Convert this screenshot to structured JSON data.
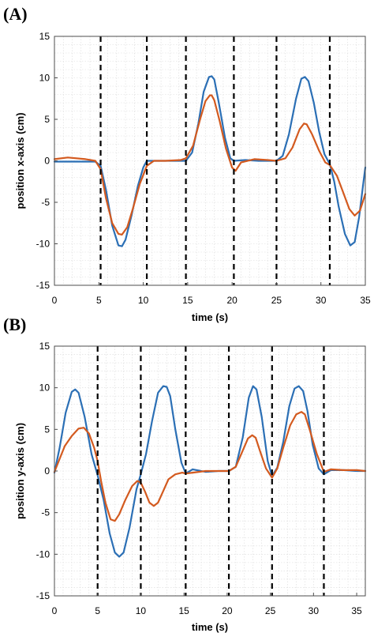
{
  "colors": {
    "blue": "#2b6fb5",
    "orange": "#d35a1f",
    "grid": "#d9d9d9"
  },
  "chart_data": [
    {
      "type": "line",
      "panel_label": "(A)",
      "xlabel": "time (s)",
      "ylabel": "position x-axis (cm)",
      "xlim": [
        0,
        35
      ],
      "ylim": [
        -15,
        15
      ],
      "xticks": [
        0,
        5,
        10,
        15,
        20,
        25,
        30,
        35
      ],
      "yticks": [
        -15,
        -10,
        -5,
        0,
        5,
        10,
        15
      ],
      "grid": true,
      "event_lines": [
        5.2,
        10.4,
        14.8,
        20.2,
        25.0,
        31.0
      ],
      "series": [
        {
          "color": "blue",
          "x": [
            0,
            4.6,
            5.2,
            5.8,
            6.5,
            7.2,
            7.6,
            8.0,
            8.7,
            9.4,
            10.0,
            10.4,
            11.0,
            12.5,
            14.2,
            14.8,
            15.5,
            16.2,
            16.8,
            17.4,
            17.7,
            18.0,
            18.5,
            19.2,
            19.8,
            20.2,
            21.5,
            23.0,
            25.0,
            25.7,
            26.4,
            27.2,
            27.8,
            28.2,
            28.6,
            29.2,
            29.8,
            30.4,
            31.0,
            31.5,
            32.0,
            32.7,
            33.3,
            33.8,
            34.3,
            34.8,
            35.0
          ],
          "y": [
            -0.1,
            -0.1,
            -0.6,
            -3.5,
            -7.8,
            -10.2,
            -10.3,
            -9.5,
            -6.5,
            -3.0,
            -0.8,
            0.0,
            0.0,
            0.0,
            0.0,
            0.0,
            1.0,
            4.5,
            8.3,
            10.1,
            10.2,
            9.8,
            7.0,
            2.8,
            0.3,
            0.0,
            0.1,
            0.0,
            0.0,
            0.6,
            3.2,
            7.5,
            9.9,
            10.1,
            9.6,
            7.0,
            3.5,
            0.8,
            -0.4,
            -2.5,
            -5.5,
            -8.8,
            -10.2,
            -9.8,
            -6.8,
            -2.5,
            -0.8
          ]
        },
        {
          "color": "orange",
          "x": [
            0,
            1.5,
            3.5,
            4.6,
            5.2,
            5.8,
            6.5,
            7.2,
            7.6,
            8.2,
            8.9,
            9.6,
            10.4,
            11.2,
            12.5,
            14.2,
            14.8,
            15.6,
            16.4,
            17.0,
            17.5,
            17.7,
            18.0,
            18.6,
            19.3,
            20.0,
            20.4,
            21.0,
            22.5,
            24.0,
            25.0,
            26.0,
            26.8,
            27.6,
            28.1,
            28.4,
            29.0,
            29.8,
            30.5,
            31.0,
            31.8,
            32.5,
            33.2,
            33.8,
            34.4,
            35.0
          ],
          "y": [
            0.2,
            0.4,
            0.2,
            0.0,
            -1.0,
            -4.5,
            -7.5,
            -8.8,
            -8.9,
            -8.0,
            -5.5,
            -2.8,
            -0.6,
            0.0,
            0.0,
            0.1,
            0.3,
            1.8,
            5.0,
            7.2,
            7.9,
            7.9,
            7.3,
            4.8,
            1.5,
            -0.8,
            -1.2,
            -0.2,
            0.2,
            0.1,
            0.0,
            0.3,
            1.6,
            3.8,
            4.5,
            4.4,
            3.2,
            1.2,
            -0.2,
            -0.5,
            -1.8,
            -3.8,
            -5.8,
            -6.6,
            -6.0,
            -4.0
          ]
        }
      ]
    },
    {
      "type": "line",
      "panel_label": "(B)",
      "xlabel": "time (s)",
      "ylabel": "position y-axis (cm)",
      "xlim": [
        0,
        36
      ],
      "ylim": [
        -15,
        15
      ],
      "xticks": [
        0,
        5,
        10,
        15,
        20,
        25,
        30,
        35
      ],
      "yticks": [
        -15,
        -10,
        -5,
        0,
        5,
        10,
        15
      ],
      "grid": true,
      "event_lines": [
        5.0,
        10.0,
        15.2,
        20.2,
        25.2,
        31.2
      ],
      "series": [
        {
          "color": "blue",
          "x": [
            0,
            0.6,
            1.3,
            2.0,
            2.4,
            2.8,
            3.5,
            4.3,
            5.0,
            5.7,
            6.4,
            7.0,
            7.5,
            8.0,
            8.7,
            9.5,
            10.0,
            10.6,
            11.3,
            12.0,
            12.6,
            13.0,
            13.4,
            14.0,
            14.7,
            15.2,
            16.0,
            17.5,
            19.0,
            20.2,
            21.0,
            21.8,
            22.5,
            23.0,
            23.4,
            24.0,
            24.7,
            25.2,
            25.8,
            26.5,
            27.2,
            27.8,
            28.3,
            28.8,
            29.3,
            29.9,
            30.6,
            31.2,
            32.0,
            33.5,
            35.0,
            36.0
          ],
          "y": [
            -0.2,
            2.8,
            7.0,
            9.5,
            9.8,
            9.4,
            6.5,
            2.0,
            -0.5,
            -3.5,
            -7.5,
            -9.8,
            -10.3,
            -9.8,
            -6.8,
            -2.2,
            -0.4,
            2.0,
            6.0,
            9.4,
            10.2,
            10.1,
            9.0,
            5.0,
            1.0,
            -0.3,
            0.2,
            -0.1,
            0.0,
            0.0,
            0.5,
            4.0,
            8.8,
            10.2,
            9.8,
            6.5,
            1.2,
            -0.6,
            0.4,
            3.5,
            7.8,
            9.9,
            10.2,
            9.6,
            7.2,
            3.2,
            0.3,
            -0.4,
            0.1,
            0.1,
            0.0,
            0.0
          ]
        },
        {
          "color": "orange",
          "x": [
            0,
            0.5,
            1.2,
            2.0,
            2.8,
            3.4,
            4.0,
            4.6,
            5.0,
            5.4,
            5.9,
            6.5,
            7.0,
            7.5,
            8.2,
            9.0,
            9.6,
            10.0,
            10.5,
            11.0,
            11.5,
            12.0,
            12.6,
            13.2,
            14.0,
            14.8,
            15.2,
            16.0,
            17.5,
            19.0,
            20.2,
            21.0,
            21.7,
            22.4,
            22.9,
            23.3,
            23.8,
            24.5,
            25.2,
            25.8,
            26.5,
            27.3,
            28.0,
            28.6,
            29.0,
            29.6,
            30.4,
            31.2,
            32.0,
            33.5,
            35.0,
            36.0
          ],
          "y": [
            -0.1,
            1.2,
            3.0,
            4.2,
            5.1,
            5.2,
            4.5,
            2.8,
            1.2,
            -1.2,
            -3.8,
            -5.8,
            -6.0,
            -5.2,
            -3.5,
            -1.8,
            -1.2,
            -1.4,
            -2.5,
            -3.8,
            -4.2,
            -3.8,
            -2.4,
            -1.0,
            -0.4,
            -0.2,
            -0.3,
            -0.2,
            0.0,
            0.0,
            0.0,
            0.5,
            2.2,
            3.9,
            4.3,
            4.0,
            2.4,
            0.3,
            -0.8,
            0.3,
            2.8,
            5.5,
            6.8,
            7.1,
            6.8,
            4.8,
            2.0,
            -0.1,
            0.2,
            0.1,
            0.1,
            0.0
          ]
        }
      ]
    }
  ]
}
